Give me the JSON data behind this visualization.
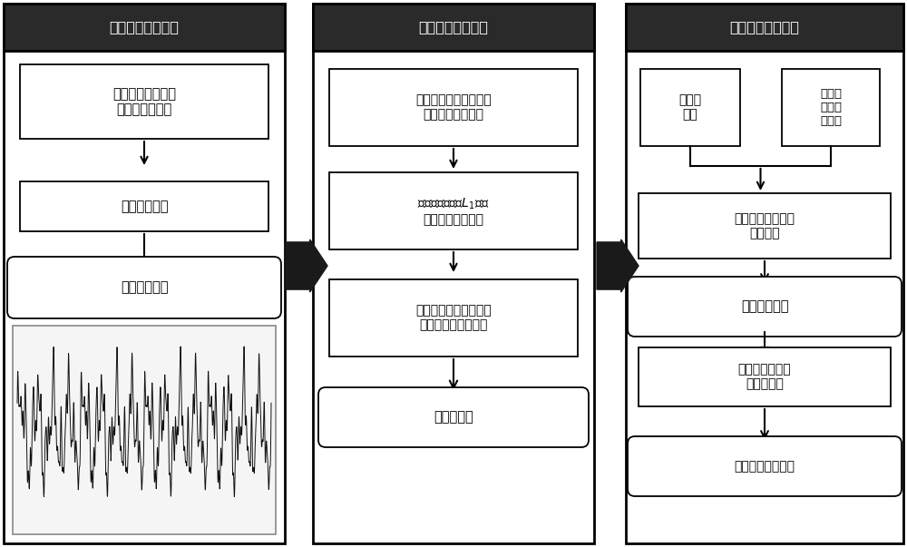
{
  "panel1_title": "振动响应信息获取",
  "panel2_title": "单振源信号的提取",
  "panel3_title": "振动源的定量识别",
  "bg_color": "#ffffff",
  "panel_border_color": "#000000",
  "header_bg_color": "#2a2a2a",
  "header_text_color": "#ffffff",
  "box_border_color": "#000000",
  "box_fill_color": "#ffffff",
  "arrow_color": "#000000",
  "big_arrow_color": "#1a1a1a"
}
